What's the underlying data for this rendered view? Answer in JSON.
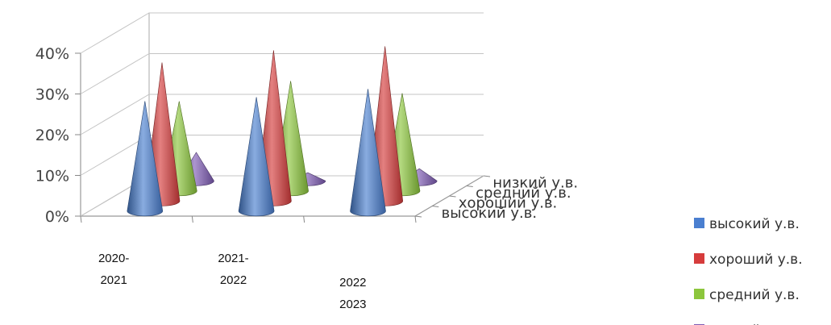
{
  "chart_data": {
    "type": "bar",
    "subtype": "3d-cone",
    "categories": [
      {
        "line1": "2020-",
        "line2": "2021"
      },
      {
        "line1": "2021-",
        "line2": "2022"
      },
      {
        "line1": "2022",
        "line2": "2023"
      }
    ],
    "series": [
      {
        "name": "высокий у.в.",
        "color": "#4a7fd0",
        "values": [
          27,
          28,
          30
        ]
      },
      {
        "name": "хороший у.в.",
        "color": "#d63c3c",
        "values": [
          34,
          37,
          38
        ]
      },
      {
        "name": "средний у.в.",
        "color": "#8cc63c",
        "values": [
          22,
          27,
          24
        ]
      },
      {
        "name": "низкий у.в.",
        "color": "#7f5cb5",
        "values": [
          7,
          2,
          3
        ]
      }
    ],
    "depth_labels": [
      "низкий у.в.",
      "средний у.в.",
      "хороший у.в.",
      "высокий у.в."
    ],
    "y_ticks": [
      "0%",
      "10%",
      "20%",
      "30%",
      "40%"
    ],
    "ylim": [
      0,
      40
    ],
    "grid": true,
    "legend_position": "right"
  }
}
